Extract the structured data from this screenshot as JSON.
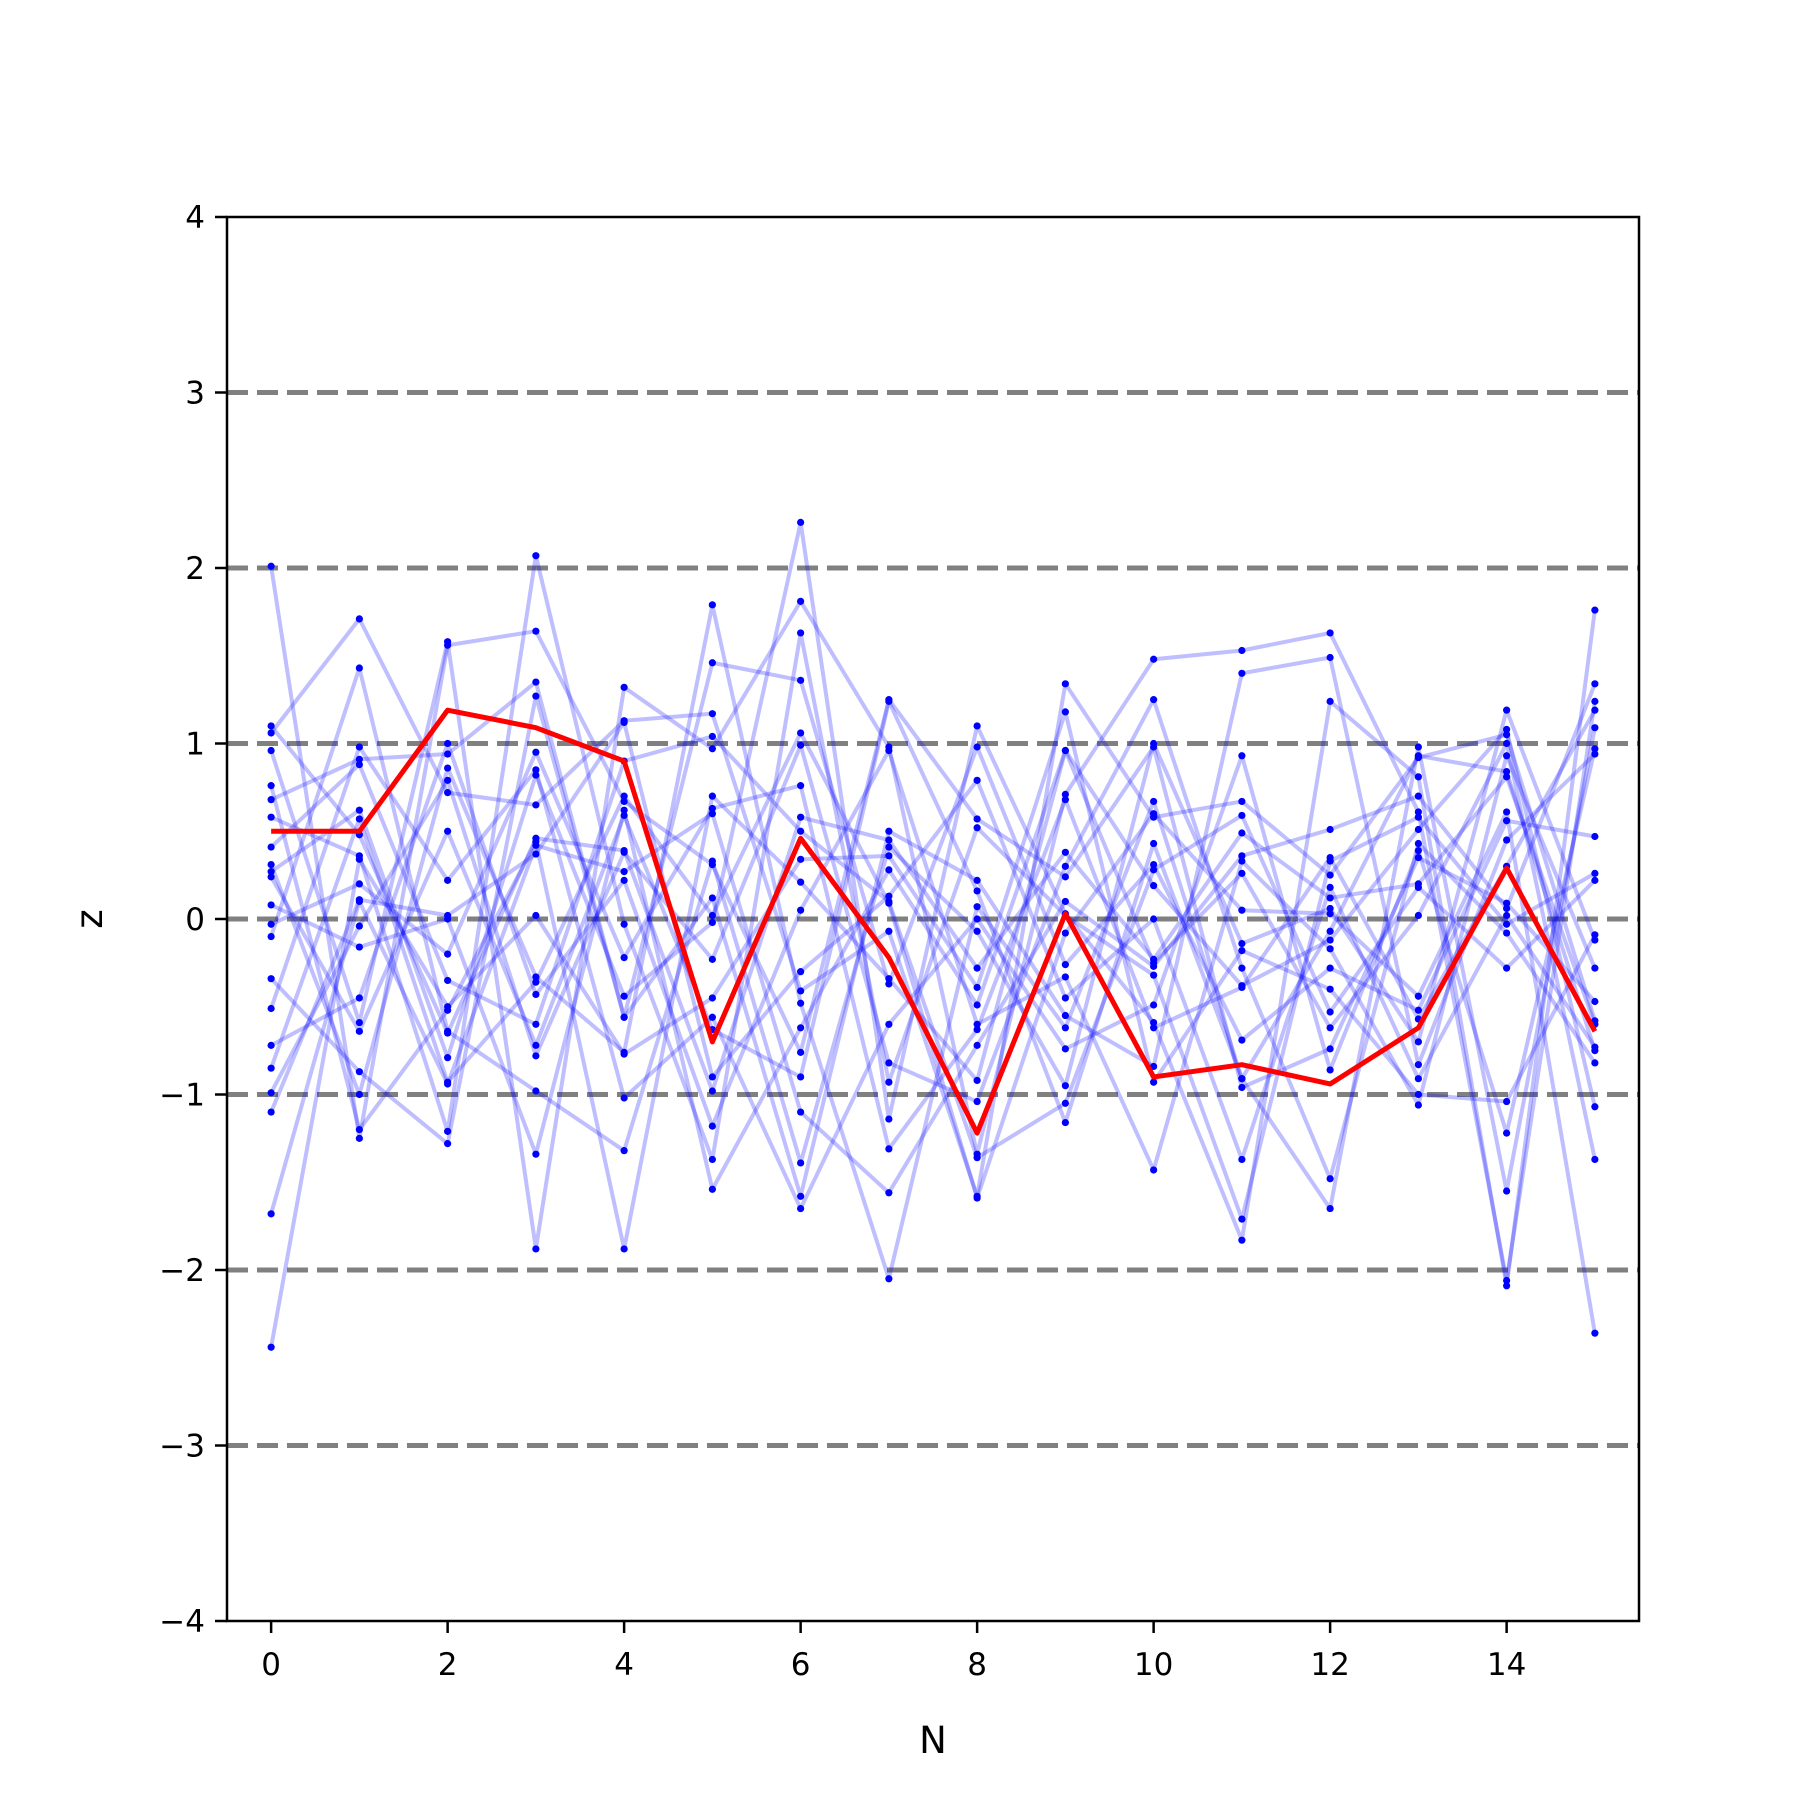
{
  "chart_data": {
    "type": "line",
    "title": "",
    "xlabel": "N",
    "ylabel": "z",
    "xlim": [
      -0.5,
      15.5
    ],
    "ylim": [
      -4,
      4
    ],
    "xticks": [
      "0",
      "2",
      "4",
      "6",
      "8",
      "10",
      "12",
      "14"
    ],
    "yticks": [
      "−4",
      "−3",
      "−2",
      "−1",
      "0",
      "1",
      "2",
      "3",
      "4"
    ],
    "reference_lines": [
      -3,
      -2,
      -1,
      0,
      1,
      2,
      3
    ],
    "reference_line_color": "#808080",
    "grid": false,
    "legend": "none",
    "x": [
      0,
      1,
      2,
      3,
      4,
      5,
      6,
      7,
      8,
      9,
      10,
      11,
      12,
      13,
      14,
      15
    ],
    "highlight_series": {
      "color": "#ff0000",
      "values": [
        0.5,
        0.5,
        1.19,
        1.09,
        0.9,
        -0.7,
        0.46,
        -0.22,
        -1.22,
        0.03,
        -0.9,
        -0.83,
        -0.94,
        -0.62,
        0.29,
        -0.64
      ]
    },
    "background_series_color": "#0000ff",
    "background_series": [
      [
        2.01,
        -1.25,
        1.56,
        1.64,
        0.67,
        0.31,
        -0.76,
        1.25,
        0.57,
        0.24,
        0.98,
        -0.96,
        -0.74,
        0.35,
        0.09,
        -0.47
      ],
      [
        1.1,
        0.48,
        -0.65,
        0.46,
        0.39,
        -0.98,
        0.58,
        0.45,
        -0.28,
        0.38,
        -0.23,
        0.49,
        0.12,
        0.2,
        0.81,
        -0.6
      ],
      [
        1.06,
        1.71,
        0.72,
        0.65,
        1.13,
        1.17,
        -0.41,
        -0.07,
        -1.58,
        1.34,
        0.58,
        0.67,
        0.25,
        0.92,
        1.05,
        -0.58
      ],
      [
        0.96,
        -0.59,
        1.58,
        -1.88,
        1.32,
        0.97,
        1.81,
        0.98,
        -1.34,
        0.71,
        1.48,
        1.53,
        1.63,
        0.61,
        -2.06,
        1.24
      ],
      [
        0.76,
        -1.2,
        -0.52,
        0.44,
        -1.88,
        0.7,
        0.21,
        -0.34,
        -0.92,
        0.96,
        -0.25,
        0.26,
        -0.62,
        0.02,
        1.0,
        -1.37
      ],
      [
        0.68,
        0.91,
        0.94,
        1.35,
        -0.56,
        0.12,
        -1.58,
        0.5,
        0.22,
        -0.55,
        -0.84,
        1.4,
        1.49,
        -0.83,
        0.45,
        0.94
      ],
      [
        0.58,
        0.36,
        -1.21,
        2.07,
        -0.03,
        -1.37,
        1.63,
        -0.93,
        0.52,
        0.02,
        -0.32,
        -1.71,
        0.33,
        0.58,
        -0.03,
        0.26
      ],
      [
        0.31,
        -1.0,
        0.86,
        -0.33,
        -0.76,
        1.79,
        -0.48,
        -2.05,
        0.07,
        -0.62,
        0.67,
        -0.91,
        -1.65,
        0.98,
        -1.55,
        1.09
      ],
      [
        0.27,
        0.62,
        -0.79,
        0.82,
        -0.44,
        -0.02,
        2.26,
        -1.14,
        1.1,
        0.03,
        -0.59,
        -1.83,
        1.24,
        0.81,
        -2.09,
        1.76
      ],
      [
        0.08,
        -0.16,
        0.0,
        -1.34,
        0.62,
        -1.54,
        -0.62,
        0.28,
        -0.49,
        0.96,
        0.19,
        -0.38,
        -0.12,
        0.51,
        1.08,
        -1.07
      ],
      [
        -0.1,
        1.43,
        -0.64,
        -0.98,
        -1.32,
        0.33,
        -1.39,
        0.41,
        -0.07,
        -0.95,
        1.0,
        -0.14,
        0.06,
        -0.7,
        1.19,
        -0.12
      ],
      [
        -0.34,
        -0.87,
        -1.28,
        1.27,
        -0.56,
        1.46,
        1.36,
        -0.37,
        0.98,
        -0.26,
        0.31,
        -0.69,
        -0.28,
        -0.52,
        0.56,
        0.47
      ],
      [
        -0.51,
        0.98,
        0.22,
        0.85,
        -1.02,
        -0.56,
        -1.65,
        -0.6,
        0.0,
        -0.74,
        -0.49,
        0.93,
        -0.86,
        0.39,
        -1.22,
        0.97
      ],
      [
        -0.72,
        -0.45,
        1.0,
        -0.43,
        0.22,
        -1.18,
        0.05,
        0.96,
        -0.6,
        -0.33,
        -1.43,
        0.33,
        -0.17,
        -1.06,
        0.93,
        -0.28
      ],
      [
        -0.85,
        0.57,
        -0.93,
        -0.36,
        0.7,
        0.02,
        1.06,
        0.09,
        -1.59,
        -0.08,
        0.6,
        0.05,
        0.03,
        -0.44,
        0.61,
        -2.36
      ],
      [
        -0.99,
        -0.04,
        0.79,
        -0.78,
        0.38,
        -0.23,
        0.99,
        -0.82,
        -1.04,
        0.3,
        1.25,
        -0.28,
        -1.48,
        0.43,
        -0.08,
        -0.82
      ],
      [
        -1.1,
        0.11,
        0.02,
        0.37,
        1.12,
        -0.9,
        -0.3,
        0.13,
        0.79,
        -0.45,
        0.0,
        -1.37,
        0.18,
        -0.91,
        0.02,
        -0.73
      ],
      [
        -1.68,
        0.1,
        -0.94,
        0.42,
        0.27,
        0.6,
        -1.1,
        -1.56,
        -0.72,
        0.1,
        -0.27,
        0.36,
        0.51,
        0.7,
        0.06,
        1.34
      ],
      [
        -2.44,
        0.34,
        -0.5,
        0.02,
        -0.77,
        -0.45,
        0.34,
        0.36,
        -0.39,
        1.18,
        -0.93,
        -0.18,
        -0.4,
        -1.0,
        -1.04,
        -0.09
      ],
      [
        0.24,
        -0.64,
        0.5,
        -0.72,
        0.59,
        -0.63,
        -0.9,
        1.24,
        0.16,
        -1.16,
        0.43,
        -0.91,
        -0.07,
        0.93,
        0.84,
        -0.75
      ],
      [
        -0.03,
        0.2,
        -0.2,
        0.95,
        -0.22,
        0.63,
        0.76,
        -1.31,
        -0.63,
        0.68,
        -0.62,
        -0.39,
        0.35,
        -0.57,
        0.3,
        1.19
      ],
      [
        0.41,
        0.88,
        -0.35,
        -0.6,
        0.9,
        1.04,
        0.5,
        0.1,
        -1.36,
        -1.05,
        0.28,
        0.59,
        -0.53,
        0.18,
        -0.28,
        0.22
      ]
    ]
  }
}
